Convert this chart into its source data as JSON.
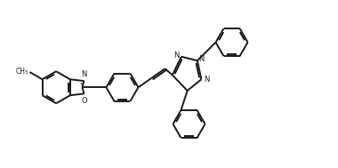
{
  "figsize": [
    3.8,
    1.89
  ],
  "dpi": 100,
  "lc": "#1a1a1a",
  "lw": 1.4,
  "xlim": [
    0,
    10
  ],
  "ylim": [
    0,
    5
  ]
}
